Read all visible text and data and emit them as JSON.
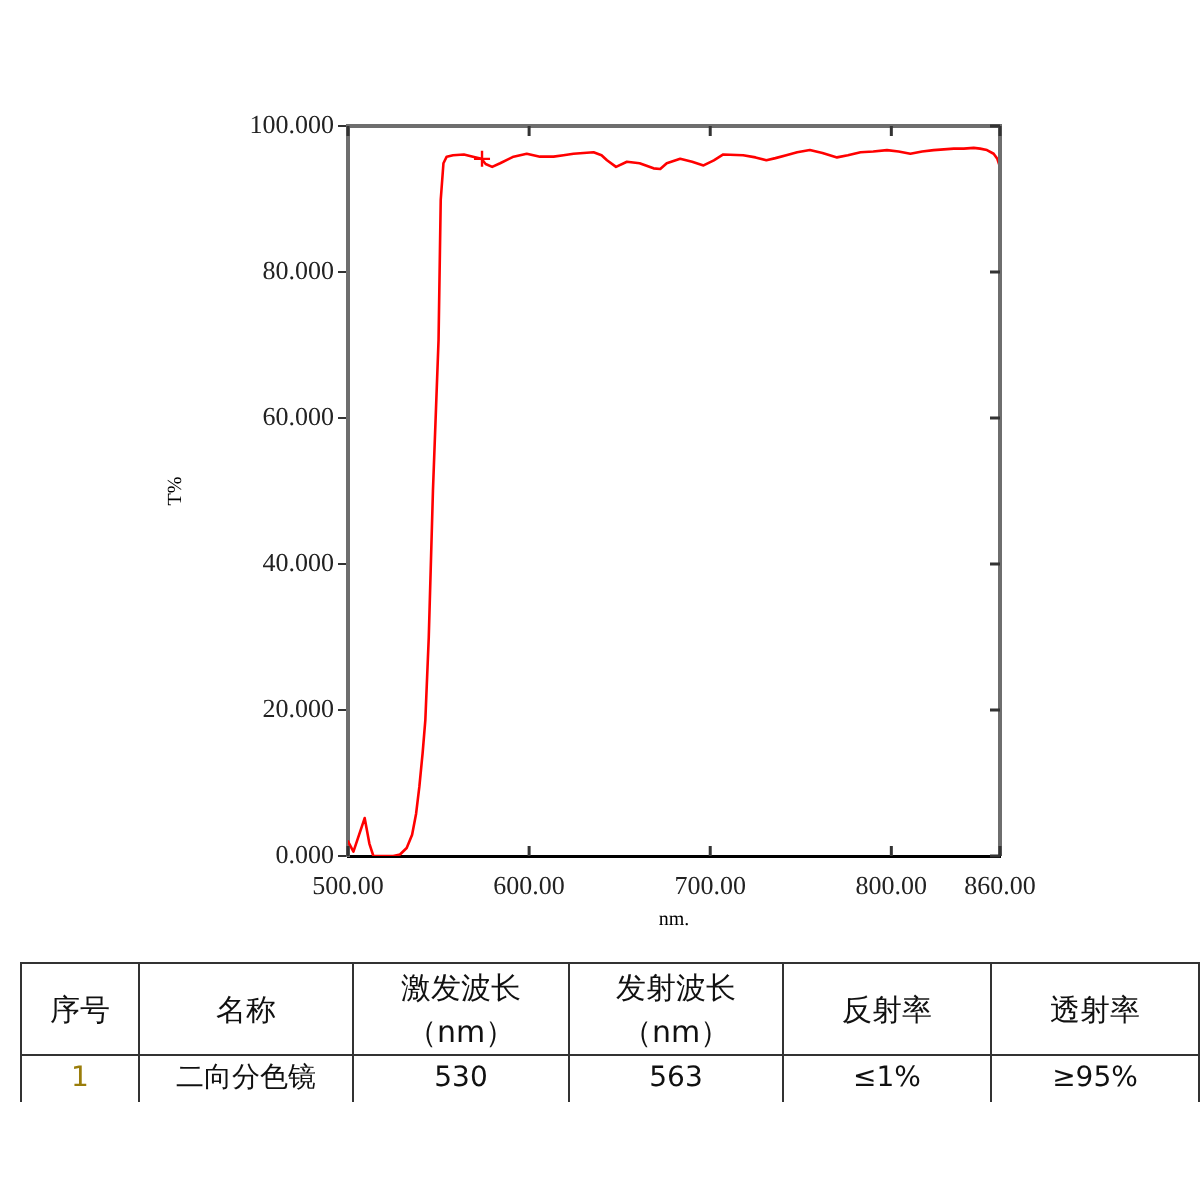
{
  "chart_data": [
    {
      "type": "line",
      "xlabel": "nm.",
      "ylabel": "T%",
      "xlim": [
        500,
        860
      ],
      "ylim": [
        0,
        100
      ],
      "xticks": [
        {
          "value": 500,
          "label": "500.00"
        },
        {
          "value": 600,
          "label": "600.00"
        },
        {
          "value": 700,
          "label": "700.00"
        },
        {
          "value": 800,
          "label": "800.00"
        },
        {
          "value": 860,
          "label": "860.00"
        }
      ],
      "yticks": [
        {
          "value": 0,
          "label": "0.000"
        },
        {
          "value": 20,
          "label": "20.000"
        },
        {
          "value": 40,
          "label": "40.000"
        },
        {
          "value": 60,
          "label": "60.000"
        },
        {
          "value": 80,
          "label": "80.000"
        },
        {
          "value": 100,
          "label": "100.000"
        }
      ],
      "series": [
        {
          "color": "#ff0000",
          "x": [
            500,
            503,
            509.2,
            511.8,
            514,
            520,
            525,
            528.7,
            532.4,
            535.4,
            537.6,
            539.4,
            541.2,
            542.7,
            544.6,
            546.9,
            550,
            551.2,
            552.7,
            554.5,
            558,
            564,
            569,
            573.7,
            576,
            579.6,
            584,
            591.4,
            598.7,
            606,
            613.5,
            619,
            624.5,
            630,
            635.6,
            640,
            643,
            648,
            654,
            661,
            668.7,
            672.4,
            676,
            683.4,
            690,
            696.3,
            702,
            707.2,
            718.2,
            725,
            731,
            736,
            742,
            748,
            755,
            762,
            770,
            776,
            783,
            790,
            797.6,
            804,
            810.5,
            817,
            823.4,
            829,
            834.5,
            840,
            845.5,
            849,
            852.8,
            856.5,
            858.5,
            860
          ],
          "values": [
            2.0,
            0.6,
            5.2,
            1.7,
            0,
            0,
            0,
            0.2,
            1.1,
            2.9,
            5.8,
            9.5,
            14.1,
            18.6,
            30,
            50,
            70.7,
            89.9,
            94.9,
            95.8,
            96,
            96.1,
            95.8,
            95.5,
            94.8,
            94.4,
            94.9,
            95.8,
            96.2,
            95.8,
            95.8,
            96,
            96.2,
            96.3,
            96.4,
            96,
            95.3,
            94.4,
            95.1,
            94.9,
            94.2,
            94.1,
            94.9,
            95.5,
            95.1,
            94.6,
            95.3,
            96.1,
            96,
            95.7,
            95.3,
            95.6,
            96,
            96.4,
            96.7,
            96.3,
            95.7,
            96,
            96.4,
            96.5,
            96.7,
            96.5,
            96.2,
            96.5,
            96.7,
            96.8,
            96.9,
            96.9,
            97,
            96.9,
            96.7,
            96.2,
            95.5,
            94.4
          ]
        },
        {
          "type": "scatter",
          "marker": "cross",
          "color": "#ff0000",
          "x": [
            574
          ],
          "values": [
            95.5
          ]
        }
      ]
    },
    {
      "type": "other",
      "categories": [
        "序号",
        "名称",
        "激发波长（nm）",
        "发射波长（nm）",
        "反射率",
        "透射率"
      ],
      "cell_labels": [
        [
          "1",
          "二向分色镜",
          "530",
          "563",
          "≤1%",
          "≥95%"
        ]
      ]
    }
  ]
}
